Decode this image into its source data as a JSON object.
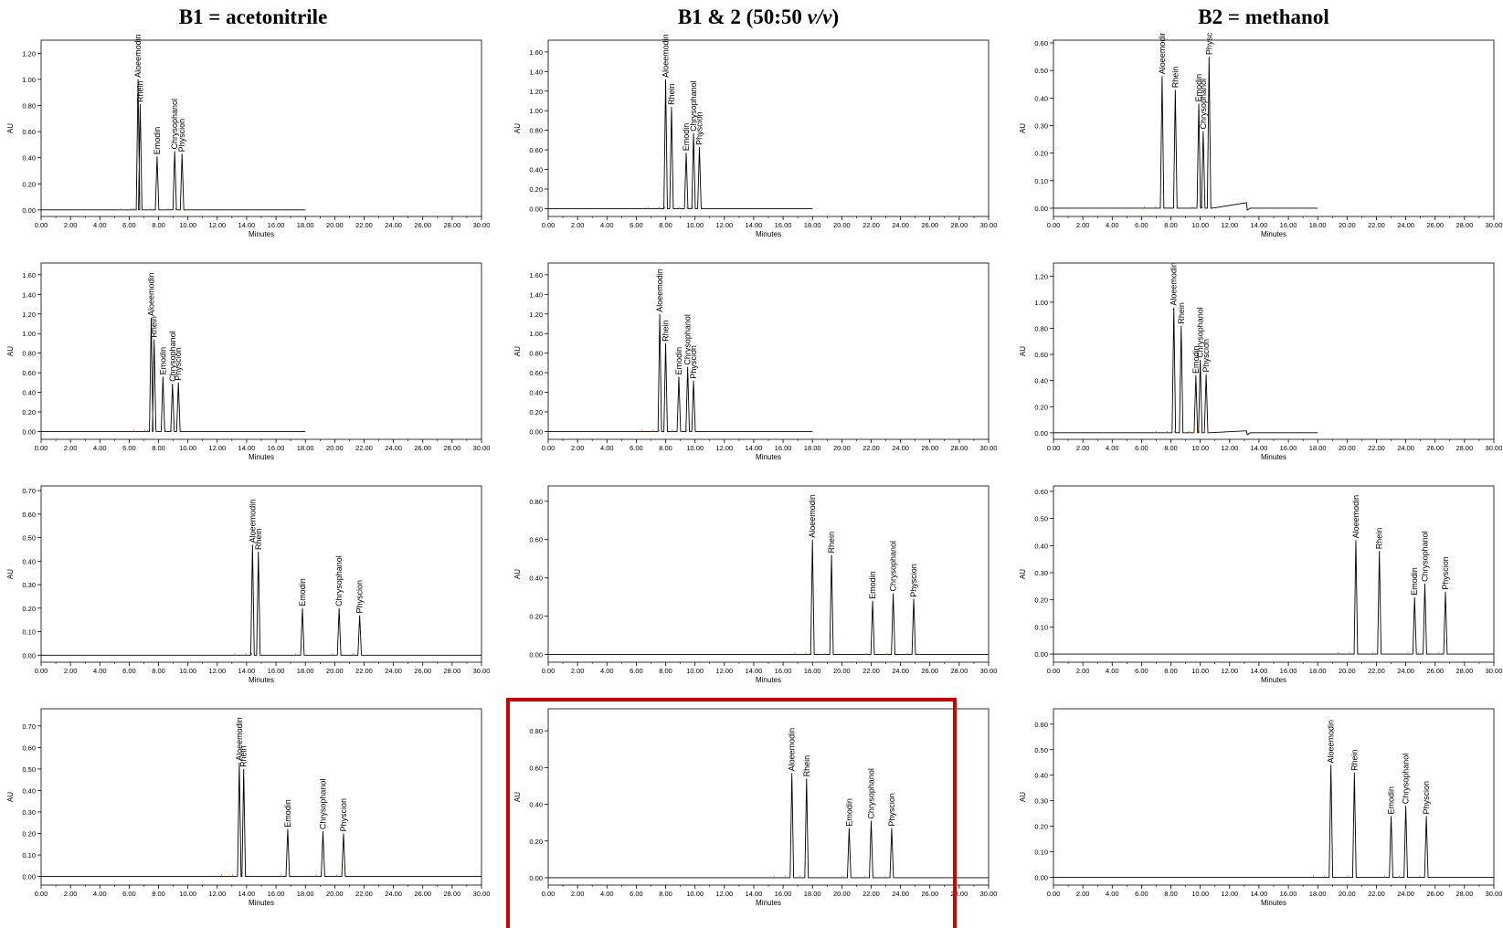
{
  "columns": [
    {
      "id": "b1",
      "title": "B1 = acetonitrile"
    },
    {
      "id": "mix",
      "title_pre": "B1 & 2 (50:50 ",
      "title_unit": "v/v",
      "title_post": ")"
    },
    {
      "id": "b2",
      "title": "B2 = methanol"
    }
  ],
  "colors": {
    "trace": "#000000",
    "baseline_peaks": "#e07020",
    "highlight_border": "#d40000"
  },
  "highlighted_panel": {
    "row": 3,
    "col": 1
  },
  "chart_data": [
    {
      "type": "line",
      "row": 0,
      "col": 0,
      "xlabel": "Minutes",
      "ylabel": "AU",
      "xlim": [
        0,
        30
      ],
      "ylim": [
        -0.05,
        1.3
      ],
      "yticks": [
        0,
        0.2,
        0.4,
        0.6,
        0.8,
        1.0,
        1.2
      ],
      "ytick_labels": [
        "0.00",
        "0.20",
        "0.40",
        "0.60",
        "0.80",
        "1.00",
        "1.20"
      ],
      "trace_end": 18,
      "peaks": [
        {
          "name": "Aloeemodin",
          "x": 6.6,
          "y": 1.0
        },
        {
          "name": "Rhein",
          "x": 6.75,
          "y": 0.81
        },
        {
          "name": "Emodin",
          "x": 7.9,
          "y": 0.41
        },
        {
          "name": "Chrysophanol",
          "x": 9.1,
          "y": 0.45
        },
        {
          "name": "Physcion",
          "x": 9.6,
          "y": 0.43
        }
      ],
      "step": null
    },
    {
      "type": "line",
      "row": 0,
      "col": 1,
      "xlabel": "Minutes",
      "ylabel": "AU",
      "xlim": [
        0,
        30
      ],
      "ylim": [
        -0.08,
        1.72
      ],
      "yticks": [
        0,
        0.2,
        0.4,
        0.6,
        0.8,
        1.0,
        1.2,
        1.4,
        1.6
      ],
      "ytick_labels": [
        "0.00",
        "0.20",
        "0.40",
        "0.60",
        "0.80",
        "1.00",
        "1.20",
        "1.40",
        "1.60"
      ],
      "trace_end": 18,
      "peaks": [
        {
          "name": "Aloeemodin",
          "x": 8.0,
          "y": 1.32
        },
        {
          "name": "Rhein",
          "x": 8.4,
          "y": 1.04
        },
        {
          "name": "Emodin",
          "x": 9.4,
          "y": 0.57
        },
        {
          "name": "Chrysophanol",
          "x": 9.9,
          "y": 0.77
        },
        {
          "name": "Physcion",
          "x": 10.3,
          "y": 0.63
        }
      ],
      "step": null
    },
    {
      "type": "line",
      "row": 0,
      "col": 2,
      "xlabel": "Minutes",
      "ylabel": "AU",
      "xlim": [
        0,
        30
      ],
      "ylim": [
        -0.03,
        0.61
      ],
      "yticks": [
        0,
        0.1,
        0.2,
        0.3,
        0.4,
        0.5,
        0.6
      ],
      "ytick_labels": [
        "0.00",
        "0.10",
        "0.20",
        "0.30",
        "0.40",
        "0.50",
        "0.60"
      ],
      "trace_end": 18,
      "peaks": [
        {
          "name": "Aloeemodin",
          "x": 7.4,
          "y": 0.48
        },
        {
          "name": "Rhein",
          "x": 8.3,
          "y": 0.43
        },
        {
          "name": "Emodin",
          "x": 9.9,
          "y": 0.38
        },
        {
          "name": "Chrysophanol",
          "x": 10.2,
          "y": 0.28
        },
        {
          "name": "Physcion",
          "x": 10.6,
          "y": 0.55
        }
      ],
      "step": {
        "start": 10.8,
        "end": 13.2,
        "level": 0.02
      }
    },
    {
      "type": "line",
      "row": 1,
      "col": 0,
      "xlabel": "Minutes",
      "ylabel": "AU",
      "xlim": [
        0,
        30
      ],
      "ylim": [
        -0.08,
        1.72
      ],
      "yticks": [
        0,
        0.2,
        0.4,
        0.6,
        0.8,
        1.0,
        1.2,
        1.4,
        1.6
      ],
      "ytick_labels": [
        "0.00",
        "0.20",
        "0.40",
        "0.60",
        "0.80",
        "1.00",
        "1.20",
        "1.40",
        "1.60"
      ],
      "trace_end": 18,
      "peaks": [
        {
          "name": "Aloeemodin",
          "x": 7.5,
          "y": 1.16
        },
        {
          "name": "Rhein",
          "x": 7.7,
          "y": 0.94
        },
        {
          "name": "Emodin",
          "x": 8.3,
          "y": 0.56
        },
        {
          "name": "Chrysophanol",
          "x": 8.95,
          "y": 0.49
        },
        {
          "name": "Physcion",
          "x": 9.35,
          "y": 0.5
        }
      ],
      "step": null
    },
    {
      "type": "line",
      "row": 1,
      "col": 1,
      "xlabel": "Minutes",
      "ylabel": "AU",
      "xlim": [
        0,
        30
      ],
      "ylim": [
        -0.08,
        1.72
      ],
      "yticks": [
        0,
        0.2,
        0.4,
        0.6,
        0.8,
        1.0,
        1.2,
        1.4,
        1.6
      ],
      "ytick_labels": [
        "0.00",
        "0.20",
        "0.40",
        "0.60",
        "0.80",
        "1.00",
        "1.20",
        "1.40",
        "1.60"
      ],
      "trace_end": 18,
      "peaks": [
        {
          "name": "Aloeemodin",
          "x": 7.6,
          "y": 1.2
        },
        {
          "name": "Rhein",
          "x": 8.0,
          "y": 0.9
        },
        {
          "name": "Emodin",
          "x": 8.9,
          "y": 0.56
        },
        {
          "name": "Chrysophanol",
          "x": 9.5,
          "y": 0.66
        },
        {
          "name": "Physcion",
          "x": 9.9,
          "y": 0.52
        }
      ],
      "step": null
    },
    {
      "type": "line",
      "row": 1,
      "col": 2,
      "xlabel": "Minutes",
      "ylabel": "AU",
      "xlim": [
        0,
        30
      ],
      "ylim": [
        -0.05,
        1.3
      ],
      "yticks": [
        0,
        0.2,
        0.4,
        0.6,
        0.8,
        1.0,
        1.2
      ],
      "ytick_labels": [
        "0.00",
        "0.20",
        "0.40",
        "0.60",
        "0.80",
        "1.00",
        "1.20"
      ],
      "trace_end": 18,
      "peaks": [
        {
          "name": "Aloeemodin",
          "x": 8.2,
          "y": 0.96
        },
        {
          "name": "Rhein",
          "x": 8.7,
          "y": 0.82
        },
        {
          "name": "Emodin",
          "x": 9.7,
          "y": 0.44
        },
        {
          "name": "Chrysophanol",
          "x": 10.0,
          "y": 0.56
        },
        {
          "name": "Physcion",
          "x": 10.4,
          "y": 0.45
        }
      ],
      "step": {
        "start": 10.6,
        "end": 13.2,
        "level": 0.015
      }
    },
    {
      "type": "line",
      "row": 2,
      "col": 0,
      "xlabel": "Minutes",
      "ylabel": "AU",
      "xlim": [
        0,
        30
      ],
      "ylim": [
        -0.03,
        0.72
      ],
      "yticks": [
        0,
        0.1,
        0.2,
        0.3,
        0.4,
        0.5,
        0.6,
        0.7
      ],
      "ytick_labels": [
        "0.00",
        "0.10",
        "0.20",
        "0.30",
        "0.40",
        "0.50",
        "0.60",
        "0.70"
      ],
      "trace_end": 30,
      "peaks": [
        {
          "name": "Aloeemodin",
          "x": 14.4,
          "y": 0.47
        },
        {
          "name": "Rhein",
          "x": 14.8,
          "y": 0.44
        },
        {
          "name": "Emodin",
          "x": 17.8,
          "y": 0.2
        },
        {
          "name": "Chrysophanol",
          "x": 20.3,
          "y": 0.2
        },
        {
          "name": "Physcion",
          "x": 21.7,
          "y": 0.17
        }
      ],
      "step": null
    },
    {
      "type": "line",
      "row": 2,
      "col": 1,
      "xlabel": "Minutes",
      "ylabel": "AU",
      "xlim": [
        0,
        30
      ],
      "ylim": [
        -0.04,
        0.88
      ],
      "yticks": [
        0,
        0.2,
        0.4,
        0.6,
        0.8
      ],
      "ytick_labels": [
        "0.00",
        "0.20",
        "0.40",
        "0.60",
        "0.80"
      ],
      "trace_end": 30,
      "peaks": [
        {
          "name": "Aloeemodin",
          "x": 18.0,
          "y": 0.6
        },
        {
          "name": "Rhein",
          "x": 19.3,
          "y": 0.52
        },
        {
          "name": "Emodin",
          "x": 22.1,
          "y": 0.28
        },
        {
          "name": "Chrysophanol",
          "x": 23.5,
          "y": 0.32
        },
        {
          "name": "Physcion",
          "x": 24.9,
          "y": 0.29
        }
      ],
      "step": null
    },
    {
      "type": "line",
      "row": 2,
      "col": 2,
      "xlabel": "Minutes",
      "ylabel": "AU",
      "xlim": [
        0,
        30
      ],
      "ylim": [
        -0.03,
        0.62
      ],
      "yticks": [
        0,
        0.1,
        0.2,
        0.3,
        0.4,
        0.5,
        0.6
      ],
      "ytick_labels": [
        "0.00",
        "0.10",
        "0.20",
        "0.30",
        "0.40",
        "0.50",
        "0.60"
      ],
      "trace_end": 30,
      "peaks": [
        {
          "name": "Aloeemodin",
          "x": 20.6,
          "y": 0.42
        },
        {
          "name": "Rhein",
          "x": 22.2,
          "y": 0.38
        },
        {
          "name": "Emodin",
          "x": 24.6,
          "y": 0.21
        },
        {
          "name": "Chrysophanol",
          "x": 25.3,
          "y": 0.26
        },
        {
          "name": "Physcion",
          "x": 26.7,
          "y": 0.23
        }
      ],
      "step": null
    },
    {
      "type": "line",
      "row": 3,
      "col": 0,
      "xlabel": "Minutes",
      "ylabel": "AU",
      "xlim": [
        0,
        30
      ],
      "ylim": [
        -0.04,
        0.78
      ],
      "yticks": [
        0,
        0.1,
        0.2,
        0.3,
        0.4,
        0.5,
        0.6,
        0.7
      ],
      "ytick_labels": [
        "0.00",
        "0.10",
        "0.20",
        "0.30",
        "0.40",
        "0.50",
        "0.60",
        "0.70"
      ],
      "trace_end": 30,
      "peaks": [
        {
          "name": "Aloeemodin",
          "x": 13.5,
          "y": 0.53
        },
        {
          "name": "Rhein",
          "x": 13.8,
          "y": 0.5
        },
        {
          "name": "Emodin",
          "x": 16.8,
          "y": 0.22
        },
        {
          "name": "Chrysophanol",
          "x": 19.2,
          "y": 0.21
        },
        {
          "name": "Physcion",
          "x": 20.6,
          "y": 0.2
        }
      ],
      "step": null
    },
    {
      "type": "line",
      "row": 3,
      "col": 1,
      "xlabel": "Minutes",
      "ylabel": "AU",
      "xlim": [
        0,
        30
      ],
      "ylim": [
        -0.04,
        0.92
      ],
      "yticks": [
        0,
        0.2,
        0.4,
        0.6,
        0.8
      ],
      "ytick_labels": [
        "0.00",
        "0.20",
        "0.40",
        "0.60",
        "0.80"
      ],
      "trace_end": 30,
      "peaks": [
        {
          "name": "Aloeemodin",
          "x": 16.6,
          "y": 0.57
        },
        {
          "name": "Rhein",
          "x": 17.6,
          "y": 0.54
        },
        {
          "name": "Emodin",
          "x": 20.5,
          "y": 0.27
        },
        {
          "name": "Chrysophanol",
          "x": 22.0,
          "y": 0.31
        },
        {
          "name": "Physcion",
          "x": 23.4,
          "y": 0.27
        }
      ],
      "step": null
    },
    {
      "type": "line",
      "row": 3,
      "col": 2,
      "xlabel": "Minutes",
      "ylabel": "AU",
      "xlim": [
        0,
        30
      ],
      "ylim": [
        -0.03,
        0.66
      ],
      "yticks": [
        0,
        0.1,
        0.2,
        0.3,
        0.4,
        0.5,
        0.6
      ],
      "ytick_labels": [
        "0.00",
        "0.10",
        "0.20",
        "0.30",
        "0.40",
        "0.50",
        "0.60"
      ],
      "trace_end": 30,
      "peaks": [
        {
          "name": "Aloeemodin",
          "x": 18.9,
          "y": 0.44
        },
        {
          "name": "Rhein",
          "x": 20.5,
          "y": 0.41
        },
        {
          "name": "Emodin",
          "x": 23.0,
          "y": 0.24
        },
        {
          "name": "Chrysophanol",
          "x": 24.0,
          "y": 0.28
        },
        {
          "name": "Physcion",
          "x": 25.4,
          "y": 0.24
        }
      ],
      "step": null
    }
  ]
}
